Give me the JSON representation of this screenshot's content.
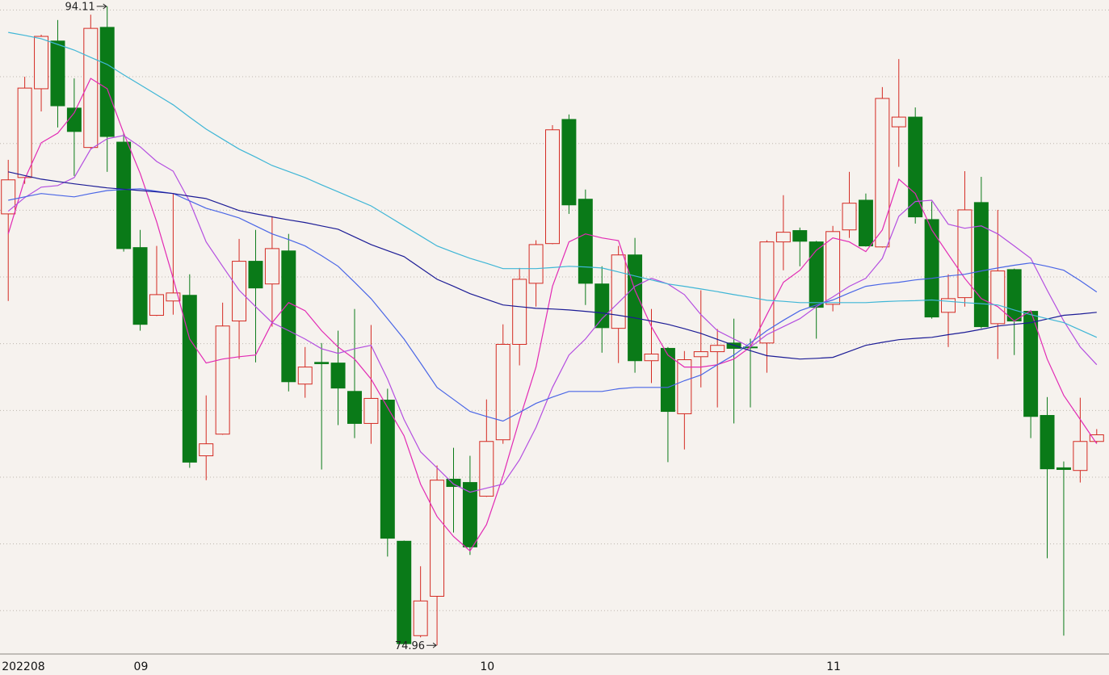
{
  "chart_data": {
    "type": "candlestick",
    "categories": [
      "202208",
      null,
      null,
      null,
      null,
      null,
      null,
      null,
      "09",
      null,
      null,
      null,
      null,
      null,
      null,
      null,
      null,
      null,
      null,
      null,
      null,
      null,
      null,
      null,
      null,
      null,
      null,
      null,
      null,
      "10",
      null,
      null,
      null,
      null,
      null,
      null,
      null,
      null,
      null,
      null,
      null,
      null,
      null,
      null,
      null,
      null,
      null,
      null,
      null,
      null,
      "11",
      null,
      null,
      null,
      null,
      null,
      null,
      null,
      null,
      null,
      null,
      null,
      null,
      null,
      null,
      null,
      null
    ],
    "open": [
      87.89,
      88.98,
      91.64,
      93.07,
      91.06,
      89.88,
      93.48,
      90.04,
      86.88,
      84.85,
      85.28,
      85.45,
      80.64,
      81.29,
      84.68,
      86.47,
      85.79,
      86.78,
      82.79,
      83.44,
      83.42,
      82.57,
      81.61,
      82.31,
      78.08,
      75.25,
      76.43,
      79.94,
      79.84,
      79.43,
      81.12,
      83.98,
      85.81,
      87.0,
      90.72,
      88.33,
      85.79,
      84.46,
      86.66,
      83.49,
      83.86,
      81.9,
      83.61,
      83.76,
      84.02,
      83.9,
      84.02,
      87.05,
      87.39,
      87.05,
      85.18,
      87.41,
      88.3,
      86.9,
      90.5,
      90.79,
      87.72,
      84.94,
      85.38,
      88.23,
      84.6,
      86.22,
      84.97,
      81.85,
      80.28,
      80.2,
      81.07
    ],
    "high": [
      89.51,
      92.0,
      93.26,
      93.7,
      91.95,
      93.86,
      94.11,
      90.31,
      87.41,
      86.93,
      88.5,
      86.08,
      82.45,
      85.23,
      87.14,
      87.41,
      87.82,
      87.29,
      83.9,
      84.02,
      84.39,
      85.04,
      84.56,
      82.65,
      78.1,
      77.33,
      80.35,
      80.88,
      80.64,
      82.33,
      84.58,
      86.27,
      87.1,
      90.55,
      90.87,
      88.62,
      86.32,
      86.93,
      87.17,
      85.04,
      83.9,
      83.78,
      85.6,
      84.44,
      84.75,
      84.15,
      87.1,
      88.45,
      87.48,
      87.08,
      87.53,
      89.15,
      88.5,
      91.69,
      92.53,
      91.08,
      88.26,
      86.08,
      89.17,
      89.0,
      88.01,
      86.25,
      84.99,
      82.4,
      80.47,
      82.38,
      81.44
    ],
    "low": [
      85.28,
      88.79,
      90.96,
      90.48,
      89.03,
      89.85,
      89.15,
      86.76,
      84.39,
      84.83,
      84.87,
      80.28,
      79.91,
      81.27,
      83.54,
      83.44,
      84.51,
      82.57,
      82.38,
      80.23,
      81.56,
      81.17,
      81.0,
      77.62,
      74.98,
      75.2,
      74.96,
      78.34,
      77.67,
      79.41,
      81.0,
      83.35,
      85.11,
      86.98,
      87.89,
      85.16,
      83.73,
      83.42,
      83.13,
      82.82,
      80.45,
      80.83,
      82.69,
      82.09,
      81.61,
      82.09,
      83.13,
      86.2,
      86.32,
      84.15,
      84.97,
      87.17,
      86.91,
      86.88,
      89.3,
      87.6,
      84.75,
      83.9,
      85.11,
      84.46,
      83.54,
      83.66,
      81.17,
      77.57,
      75.25,
      79.84,
      81.03
    ],
    "close": [
      88.91,
      91.66,
      93.21,
      91.13,
      90.36,
      93.45,
      90.21,
      86.85,
      84.58,
      85.47,
      85.52,
      80.45,
      81.0,
      84.53,
      86.47,
      85.67,
      86.85,
      82.86,
      83.3,
      83.4,
      82.67,
      81.61,
      82.36,
      78.17,
      75.01,
      76.29,
      79.91,
      79.72,
      77.91,
      81.07,
      83.98,
      85.93,
      86.97,
      90.41,
      88.16,
      85.81,
      84.48,
      86.66,
      83.49,
      83.69,
      81.97,
      83.52,
      83.76,
      83.95,
      83.86,
      83.88,
      87.05,
      87.34,
      87.07,
      85.09,
      87.36,
      88.21,
      86.93,
      91.35,
      90.79,
      87.8,
      84.8,
      85.35,
      88.01,
      84.51,
      86.18,
      84.68,
      81.82,
      80.25,
      80.23,
      81.07,
      81.27
    ],
    "up_color": "#d42a22",
    "down_color": "#0a7a18",
    "series": [
      {
        "color": "#e22ab4",
        "values": [
          87.29,
          88.93,
          90.02,
          90.31,
          90.92,
          91.95,
          91.64,
          90.31,
          89.1,
          87.65,
          85.96,
          84.14,
          83.42,
          83.54,
          83.61,
          83.66,
          84.63,
          85.23,
          84.99,
          84.39,
          83.9,
          83.54,
          82.94,
          82.09,
          81.24,
          79.79,
          78.82,
          78.22,
          77.79,
          78.58,
          80.03,
          81.73,
          83.3,
          85.72,
          87.05,
          87.29,
          87.17,
          87.09,
          85.6,
          84.51,
          83.66,
          83.3,
          83.3,
          83.37,
          83.54,
          83.9,
          84.87,
          85.84,
          86.2,
          86.8,
          87.17,
          87.05,
          86.76,
          87.41,
          88.93,
          88.5,
          87.41,
          86.68,
          85.96,
          85.35,
          85.11,
          84.68,
          84.99,
          83.54,
          82.45,
          81.73,
          81.0
        ]
      },
      {
        "color": "#b44ee0",
        "values": [
          87.97,
          88.38,
          88.69,
          88.74,
          88.98,
          89.83,
          90.14,
          90.24,
          89.9,
          89.46,
          89.17,
          88.26,
          87.05,
          86.32,
          85.6,
          85.11,
          84.63,
          84.39,
          84.14,
          83.85,
          83.71,
          83.85,
          83.95,
          82.94,
          81.73,
          80.76,
          80.28,
          79.79,
          79.55,
          79.67,
          79.79,
          80.52,
          81.49,
          82.69,
          83.66,
          84.14,
          84.75,
          85.23,
          85.72,
          85.96,
          85.79,
          85.47,
          84.87,
          84.39,
          84.14,
          83.9,
          84.27,
          84.51,
          84.75,
          85.11,
          85.4,
          85.72,
          85.96,
          86.56,
          87.82,
          88.26,
          88.3,
          87.58,
          87.46,
          87.53,
          87.29,
          86.93,
          86.56,
          85.6,
          84.68,
          83.9,
          83.37
        ]
      },
      {
        "color": "#4a66e6",
        "values": [
          88.3,
          88.4,
          88.5,
          88.45,
          88.4,
          88.5,
          88.59,
          88.62,
          88.64,
          88.57,
          88.5,
          88.28,
          88.06,
          87.92,
          87.77,
          87.53,
          87.29,
          87.12,
          86.93,
          86.64,
          86.32,
          85.84,
          85.35,
          84.75,
          84.14,
          83.42,
          82.69,
          82.33,
          81.97,
          81.82,
          81.68,
          81.94,
          82.21,
          82.4,
          82.57,
          82.57,
          82.57,
          82.65,
          82.69,
          82.69,
          82.69,
          82.89,
          83.06,
          83.37,
          83.66,
          84.02,
          84.39,
          84.7,
          84.99,
          85.16,
          85.31,
          85.52,
          85.72,
          85.79,
          85.84,
          85.91,
          85.96,
          86.03,
          86.08,
          86.18,
          86.27,
          86.35,
          86.42,
          86.32,
          86.2,
          85.89,
          85.55
        ]
      },
      {
        "color": "#1c1c96",
        "values": [
          89.15,
          89.04,
          88.93,
          88.86,
          88.79,
          88.73,
          88.67,
          88.63,
          88.59,
          88.55,
          88.5,
          88.42,
          88.35,
          88.17,
          87.99,
          87.89,
          87.8,
          87.71,
          87.63,
          87.53,
          87.43,
          87.2,
          86.97,
          86.79,
          86.61,
          86.27,
          85.93,
          85.72,
          85.5,
          85.33,
          85.16,
          85.11,
          85.06,
          85.04,
          85.01,
          84.97,
          84.92,
          84.85,
          84.77,
          84.68,
          84.58,
          84.45,
          84.31,
          84.13,
          83.95,
          83.79,
          83.64,
          83.59,
          83.54,
          83.56,
          83.59,
          83.77,
          83.95,
          84.04,
          84.12,
          84.16,
          84.19,
          84.27,
          84.34,
          84.43,
          84.53,
          84.58,
          84.63,
          84.74,
          84.85,
          84.89,
          84.94
        ]
      },
      {
        "color": "#3fb6d6",
        "values": [
          93.33,
          93.24,
          93.14,
          92.97,
          92.8,
          92.58,
          92.37,
          92.06,
          91.76,
          91.46,
          91.16,
          90.79,
          90.43,
          90.13,
          89.83,
          89.59,
          89.34,
          89.16,
          88.98,
          88.76,
          88.55,
          88.34,
          88.13,
          87.83,
          87.53,
          87.23,
          86.93,
          86.74,
          86.56,
          86.41,
          86.25,
          86.25,
          86.25,
          86.28,
          86.32,
          86.3,
          86.27,
          86.15,
          86.03,
          85.91,
          85.79,
          85.72,
          85.64,
          85.56,
          85.47,
          85.39,
          85.3,
          85.27,
          85.23,
          85.23,
          85.23,
          85.23,
          85.23,
          85.26,
          85.28,
          85.29,
          85.31,
          85.27,
          85.23,
          85.2,
          85.16,
          85.01,
          84.87,
          84.75,
          84.63,
          84.41,
          84.19
        ]
      }
    ],
    "ylim": [
      74.7,
      94.3
    ],
    "yticks": [
      76,
      78,
      80,
      82,
      84,
      86,
      88,
      90,
      92,
      94
    ],
    "grid": true
  }
}
